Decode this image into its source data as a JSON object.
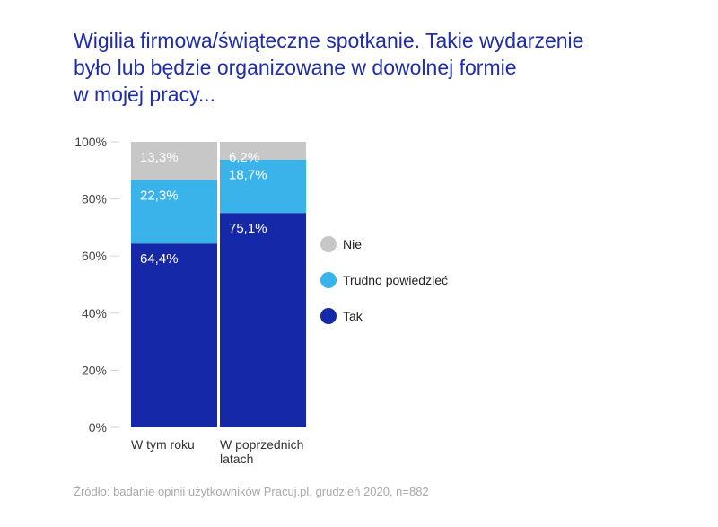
{
  "title_lines": [
    "Wigilia firmowa/świąteczne spotkanie. Takie wydarzenie",
    "było lub będzie organizowane w dowolnej formie",
    "w mojej pracy..."
  ],
  "source": "Źródło: badanie opinii użytkowników Pracuj.pl, grudzień 2020, n=882",
  "colors": {
    "title": "#1f2dab",
    "tak": "#1428a8",
    "trudno": "#3ab2ea",
    "nie": "#c7c7c7",
    "axis_text": "#444444"
  },
  "chart_data": {
    "type": "bar",
    "stacked": true,
    "categories": [
      [
        "W tym roku"
      ],
      [
        "W poprzednich",
        "latach"
      ]
    ],
    "series": [
      {
        "name": "Tak",
        "values": [
          64.4,
          75.1
        ],
        "labels": [
          "64,4%",
          "75,1%"
        ],
        "color": "#1428a8"
      },
      {
        "name": "Trudno powiedzieć",
        "values": [
          22.3,
          18.7
        ],
        "labels": [
          "22,3%",
          "18,7%"
        ],
        "color": "#3ab2ea"
      },
      {
        "name": "Nie",
        "values": [
          13.3,
          6.2
        ],
        "labels": [
          "13,3%",
          "6,2%"
        ],
        "color": "#c7c7c7"
      }
    ],
    "legend_order": [
      "Nie",
      "Trudno powiedzieć",
      "Tak"
    ],
    "yticks": [
      "0%",
      "20%",
      "40%",
      "60%",
      "80%",
      "100%"
    ],
    "ylim": [
      0,
      100
    ],
    "legend_position": "right",
    "grid": false
  }
}
